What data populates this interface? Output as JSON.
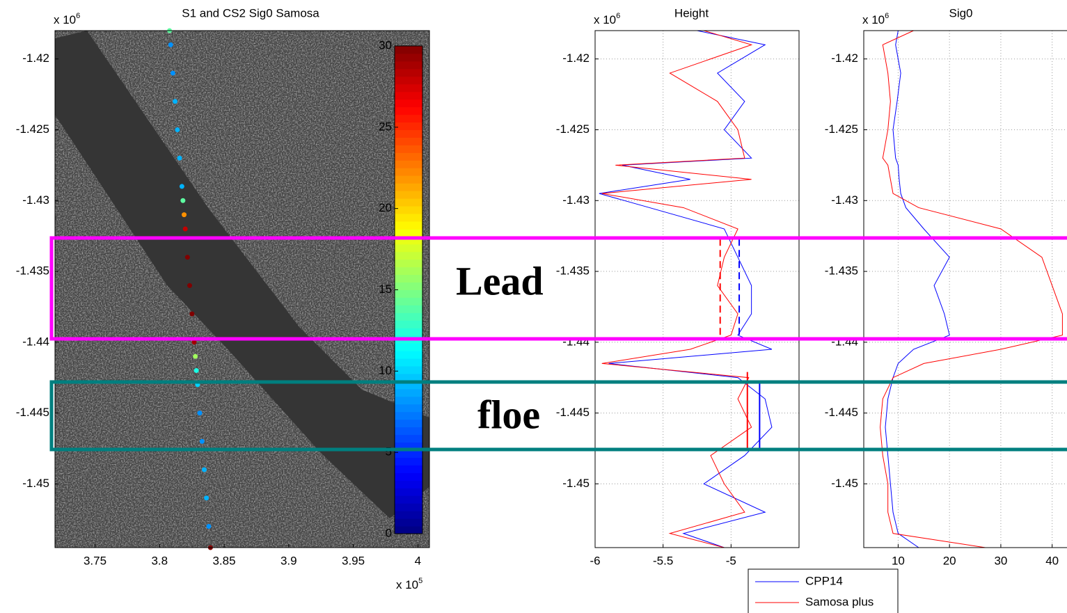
{
  "chart_data": [
    {
      "type": "scatter",
      "title": "S1 and CS2  Sig0 Samosa",
      "y_multiplier": {
        "base": "x 10",
        "exponent": "6"
      },
      "x_multiplier": {
        "base": "x 10",
        "exponent": "5"
      },
      "x": [
        3.8077,
        3.8086,
        3.8103,
        3.812,
        3.8138,
        3.8155,
        3.8173,
        3.8181,
        3.819,
        3.8199,
        3.8216,
        3.8233,
        3.8251,
        3.8268,
        3.8277,
        3.8285,
        3.8294,
        3.8311,
        3.8329,
        3.8346,
        3.8363,
        3.8381,
        3.8394
      ],
      "y": [
        -1.418,
        -1.419,
        -1.421,
        -1.423,
        -1.425,
        -1.427,
        -1.429,
        -1.43,
        -1.431,
        -1.432,
        -1.434,
        -1.436,
        -1.438,
        -1.44,
        -1.441,
        -1.442,
        -1.443,
        -1.445,
        -1.447,
        -1.449,
        -1.451,
        -1.453,
        -1.4545
      ],
      "values": [
        14,
        8,
        8,
        9,
        9,
        9,
        9,
        14,
        22,
        28,
        30,
        30,
        30,
        29,
        16,
        12,
        10,
        8,
        8,
        9,
        9,
        8,
        30
      ],
      "colorbar": {
        "lim": [
          0,
          30
        ],
        "ticks": [
          0,
          5,
          10,
          15,
          20,
          25,
          30
        ]
      },
      "xlim": [
        3.719,
        4.009
      ],
      "xticks": [
        3.75,
        3.8,
        3.85,
        3.9,
        3.95,
        4
      ],
      "ylim": [
        -1.4545,
        -1.418
      ],
      "yticks": [
        -1.42,
        -1.425,
        -1.43,
        -1.435,
        -1.44,
        -1.445,
        -1.45
      ],
      "grid": false
    },
    {
      "type": "line",
      "title": "Height",
      "y_multiplier": {
        "base": "x 10",
        "exponent": "6"
      },
      "y": [
        -1.418,
        -1.419,
        -1.421,
        -1.423,
        -1.425,
        -1.427,
        -1.4275,
        -1.4285,
        -1.4295,
        -1.4305,
        -1.432,
        -1.434,
        -1.436,
        -1.438,
        -1.4395,
        -1.4405,
        -1.4415,
        -1.4425,
        -1.444,
        -1.446,
        -1.448,
        -1.45,
        -1.452,
        -1.4535,
        -1.4545
      ],
      "series": [
        {
          "name": "CPP14",
          "color": "#0000ff",
          "values": [
            -5.25,
            -4.75,
            -5.1,
            -4.9,
            -5.05,
            -4.85,
            -5.8,
            -5.3,
            -5.97,
            -5.6,
            -5.05,
            -4.95,
            -4.85,
            -4.85,
            -4.95,
            -4.7,
            -5.9,
            -4.95,
            -4.75,
            -4.7,
            -4.9,
            -5.2,
            -4.75,
            -5.35,
            -5.05
          ]
        },
        {
          "name": "Samosa plus",
          "color": "#ff0000",
          "values": [
            -5.2,
            -4.85,
            -5.45,
            -5.1,
            -4.95,
            -4.9,
            -5.85,
            -4.85,
            -5.95,
            -5.35,
            -4.95,
            -5.05,
            -5.1,
            -4.95,
            -5.0,
            -5.3,
            -5.95,
            -4.87,
            -4.95,
            -4.85,
            -5.15,
            -5.05,
            -4.9,
            -5.45,
            -5.05
          ]
        }
      ],
      "mean_lines": [
        {
          "color": "#0000ff",
          "value": -4.94,
          "range": [
            -1.4327,
            -1.4398
          ],
          "dashed": true
        },
        {
          "color": "#ff0000",
          "value": -5.08,
          "range": [
            -1.4327,
            -1.4398
          ],
          "dashed": true
        },
        {
          "color": "#0000ff",
          "value": -4.79,
          "range": [
            -1.4429,
            -1.4475
          ],
          "dashed": false
        },
        {
          "color": "#ff0000",
          "value": -4.88,
          "range": [
            -1.4421,
            -1.4475
          ],
          "dashed": false
        }
      ],
      "xlim": [
        -6,
        -4.5
      ],
      "xticks": [
        -6,
        -5.5,
        -5
      ],
      "ylim": [
        -1.4545,
        -1.418
      ],
      "yticks": [
        -1.42,
        -1.425,
        -1.43,
        -1.435,
        -1.44,
        -1.445,
        -1.45
      ],
      "grid": true
    },
    {
      "type": "line",
      "title": "Sig0",
      "y_multiplier": {
        "base": "x 10",
        "exponent": "6"
      },
      "y": [
        -1.418,
        -1.419,
        -1.421,
        -1.423,
        -1.425,
        -1.427,
        -1.4275,
        -1.4285,
        -1.4295,
        -1.4305,
        -1.432,
        -1.434,
        -1.436,
        -1.438,
        -1.4395,
        -1.4405,
        -1.4415,
        -1.4425,
        -1.444,
        -1.446,
        -1.448,
        -1.45,
        -1.452,
        -1.4535,
        -1.4545
      ],
      "series": [
        {
          "color": "#0000ff",
          "values": [
            10,
            9.5,
            10.5,
            9.8,
            9,
            9.5,
            10,
            10.2,
            10.5,
            11.5,
            15,
            20,
            17,
            19,
            20,
            13,
            10,
            9,
            8,
            7.5,
            8,
            8.5,
            9,
            10,
            14
          ]
        },
        {
          "color": "#ff0000",
          "values": [
            13,
            7,
            8,
            8.5,
            8,
            7,
            8,
            8.5,
            9,
            14,
            30,
            38,
            40,
            42,
            42,
            30,
            15,
            9,
            7,
            6.5,
            7,
            8,
            8,
            9,
            27
          ]
        }
      ],
      "xlim": [
        3.3,
        43.3
      ],
      "xticks": [
        10,
        20,
        30,
        40
      ],
      "ylim": [
        -1.4545,
        -1.418
      ],
      "yticks": [
        -1.42,
        -1.425,
        -1.43,
        -1.435,
        -1.44,
        -1.445,
        -1.45
      ],
      "grid": true
    }
  ],
  "annotations": [
    {
      "text": "Lead",
      "color": "#ff00ff"
    },
    {
      "text": "floe",
      "color": "#007f7f"
    }
  ]
}
